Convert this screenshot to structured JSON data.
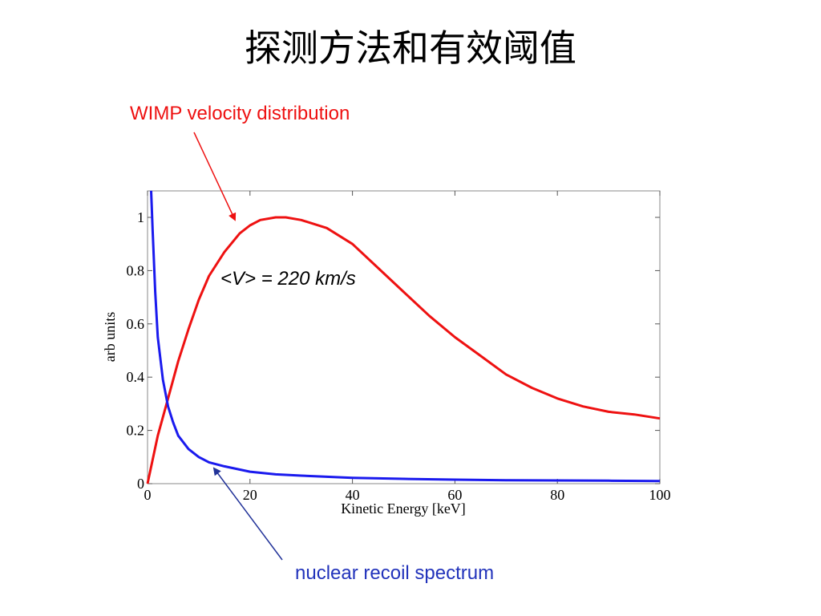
{
  "slide": {
    "title": "探测方法和有效阈值"
  },
  "chart_data": {
    "type": "line",
    "xlabel": "Kinetic Energy [keV]",
    "ylabel": "arb units",
    "xlim": [
      0,
      100
    ],
    "ylim": [
      0,
      1.1
    ],
    "x_ticks": [
      "0",
      "20",
      "40",
      "60",
      "80",
      "100"
    ],
    "y_ticks": [
      "0",
      "0.2",
      "0.4",
      "0.6",
      "0.8",
      "1"
    ],
    "grid": false,
    "series": [
      {
        "color": "#ee1111",
        "x": [
          0,
          2,
          4,
          6,
          8,
          10,
          12,
          15,
          18,
          20,
          22,
          25,
          27,
          30,
          35,
          40,
          45,
          50,
          55,
          60,
          65,
          70,
          75,
          80,
          85,
          90,
          95,
          100
        ],
        "y": [
          0,
          0.18,
          0.32,
          0.46,
          0.58,
          0.69,
          0.78,
          0.87,
          0.94,
          0.97,
          0.99,
          1.0,
          1.0,
          0.99,
          0.96,
          0.9,
          0.81,
          0.72,
          0.63,
          0.55,
          0.48,
          0.41,
          0.36,
          0.32,
          0.29,
          0.27,
          0.26,
          0.245
        ]
      },
      {
        "color": "#1a1aee",
        "x": [
          0.7,
          1,
          1.5,
          2,
          3,
          4,
          5,
          6,
          8,
          10,
          12,
          15,
          20,
          25,
          30,
          40,
          50,
          60,
          70,
          80,
          90,
          100
        ],
        "y": [
          1.1,
          0.95,
          0.72,
          0.55,
          0.39,
          0.29,
          0.23,
          0.18,
          0.13,
          0.1,
          0.08,
          0.065,
          0.045,
          0.035,
          0.03,
          0.022,
          0.018,
          0.015,
          0.013,
          0.012,
          0.011,
          0.01
        ]
      }
    ],
    "annotations": [
      {
        "text": "WIMP velocity distribution",
        "color": "#ee1111"
      },
      {
        "text": "<V> = 220 km/s",
        "color": "#000000"
      },
      {
        "text": "nuclear recoil spectrum",
        "color": "#2233bb"
      }
    ]
  }
}
